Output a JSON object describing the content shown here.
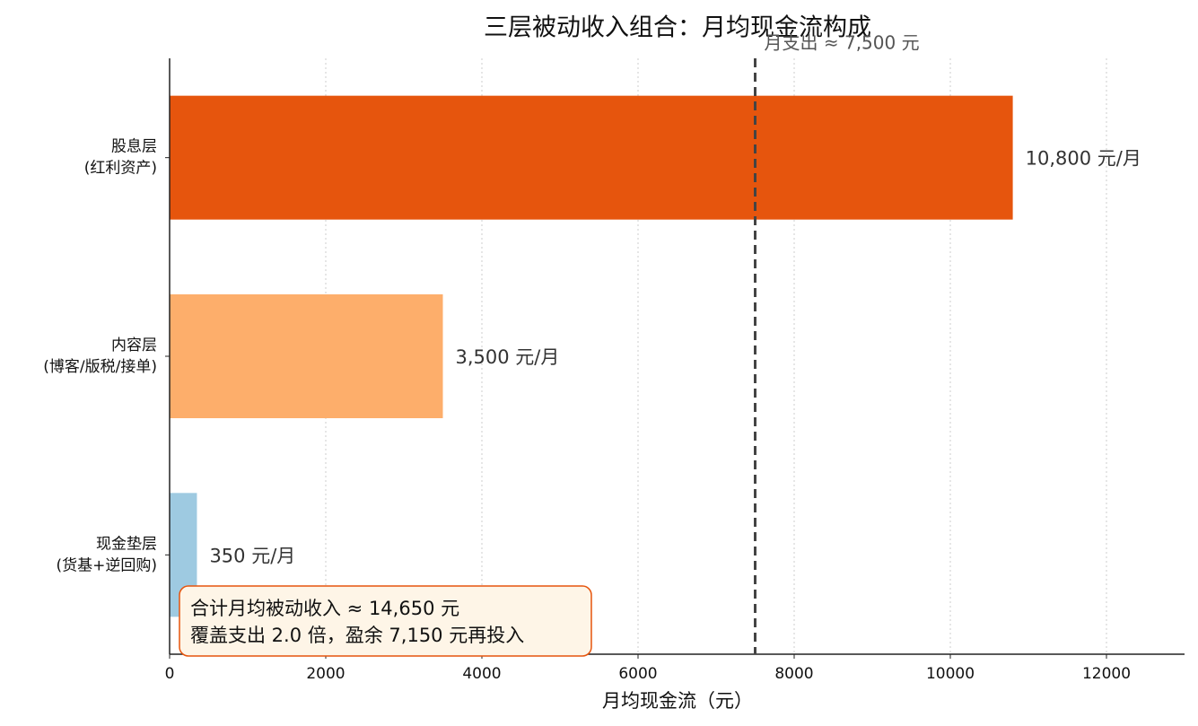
{
  "chart_data": {
    "type": "barh",
    "title": "三层被动收入组合：月均现金流构成",
    "x_label": "月均现金流（元）",
    "categories": [
      "股息层\n(红利资产)",
      "内容层\n(博客/版税/接单)",
      "现金垫层\n(货基+逆回购)"
    ],
    "values": [
      10800,
      3500,
      350
    ],
    "value_labels": [
      "10,800 元/月",
      "3,500 元/月",
      "350 元/月"
    ],
    "colors": [
      "#e6550d",
      "#fdae6b",
      "#9ecae1"
    ],
    "xlim": [
      0,
      13000
    ],
    "xticks": [
      0,
      2000,
      4000,
      6000,
      8000,
      10000,
      12000
    ],
    "grid": true,
    "reference_line": {
      "value": 7500,
      "label": "月支出 ≈ 7,500 元",
      "color": "#444444"
    },
    "annotation": [
      "合计月均被动收入 ≈ 14,650 元",
      "覆盖支出 2.0 倍，盈余 7,150 元再投入"
    ]
  }
}
